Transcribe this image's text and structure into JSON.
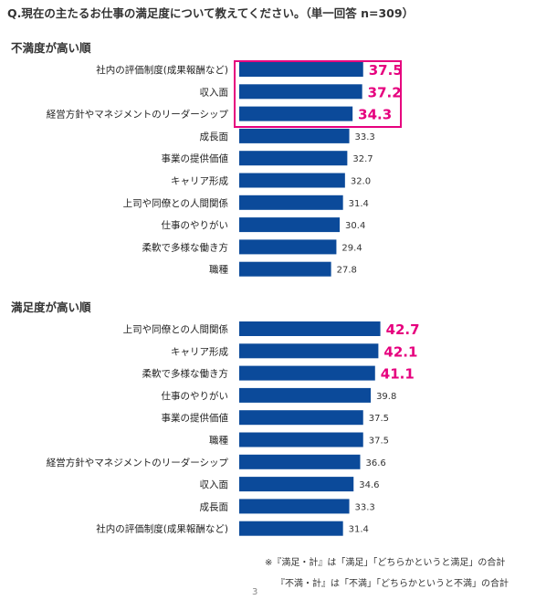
{
  "question": "Q.現在の主たるお仕事の満足度について教えてください。（単一回答 n=309）",
  "sections": {
    "dissatisfied_title": "不満度が高い順",
    "satisfied_title": "満足度が高い順"
  },
  "notes": {
    "line1": "※『満足・計』は「満足」「どちらかというと満足」の合計",
    "line2": "『不満・計』は「不満」「どちらかというと不満」の合計"
  },
  "page_number": "3",
  "colors": {
    "bar": "#0b4a9a",
    "highlight": "#e6007e",
    "label": "#222222",
    "value": "#333333"
  },
  "chart_data": [
    {
      "type": "bar",
      "orientation": "horizontal",
      "title": "不満度が高い順",
      "categories": [
        "社内の評価制度(成果報酬など)",
        "収入面",
        "経営方針やマネジメントのリーダーシップ",
        "成長面",
        "事業の提供価値",
        "キャリア形成",
        "上司や同僚との人間関係",
        "仕事のやりがい",
        "柔軟で多様な働き方",
        "職種"
      ],
      "values": [
        37.5,
        37.2,
        34.3,
        33.3,
        32.7,
        32.0,
        31.4,
        30.4,
        29.4,
        27.8
      ],
      "value_labels": [
        "37.5",
        "37.2",
        "34.3",
        "33.3",
        "32.7",
        "32.0",
        "31.4",
        "30.4",
        "29.4",
        "27.8"
      ],
      "highlighted": [
        true,
        true,
        true,
        false,
        false,
        false,
        false,
        false,
        false,
        false
      ],
      "grid": false
    },
    {
      "type": "bar",
      "orientation": "horizontal",
      "title": "満足度が高い順",
      "categories": [
        "上司や同僚との人間関係",
        "キャリア形成",
        "柔軟で多様な働き方",
        "仕事のやりがい",
        "事業の提供価値",
        "職種",
        "経営方針やマネジメントのリーダーシップ",
        "収入面",
        "成長面",
        "社内の評価制度(成果報酬など)"
      ],
      "values": [
        42.7,
        42.1,
        41.1,
        39.8,
        37.5,
        37.5,
        36.6,
        34.6,
        33.3,
        31.4
      ],
      "value_labels": [
        "42.7",
        "42.1",
        "41.1",
        "39.8",
        "37.5",
        "37.5",
        "36.6",
        "34.6",
        "33.3",
        "31.4"
      ],
      "highlighted": [
        true,
        true,
        true,
        false,
        false,
        false,
        false,
        false,
        false,
        false
      ],
      "grid": false
    }
  ]
}
